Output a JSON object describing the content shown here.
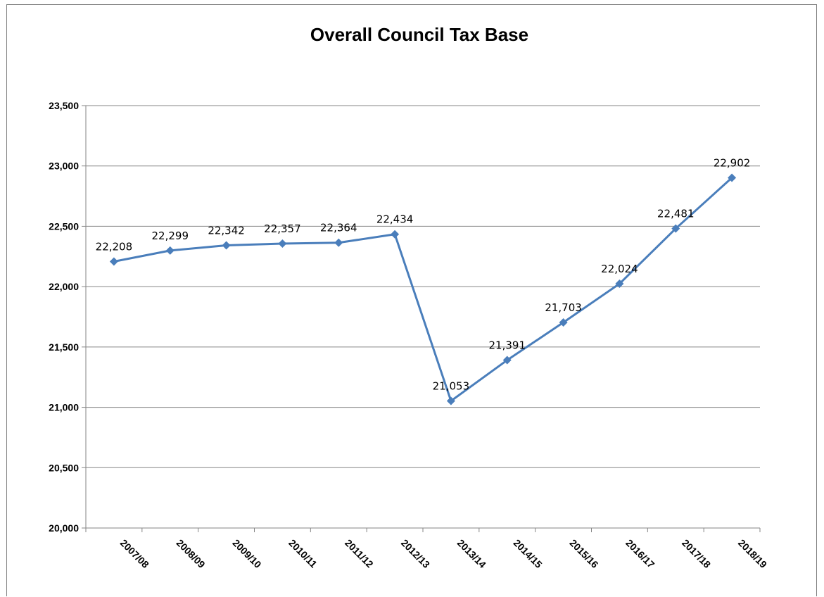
{
  "chart_data": {
    "type": "line",
    "title": "Overall Council Tax Base",
    "xlabel": "",
    "ylabel": "",
    "categories": [
      "2007/08",
      "2008/09",
      "2009/10",
      "2010/11",
      "2011/12",
      "2012/13",
      "2013/14",
      "2014/15",
      "2015/16",
      "2016/17",
      "2017/18",
      "2018/19"
    ],
    "series": [
      {
        "values": [
          22208,
          22299,
          22342,
          22357,
          22364,
          22434,
          21053,
          21391,
          21703,
          22024,
          22481,
          22902
        ],
        "color": "#4a7ebb",
        "marker": "diamond"
      }
    ],
    "data_labels": [
      "22,208",
      "22,299",
      "22,342",
      "22,357",
      "22,364",
      "22,434",
      "21,053",
      "21,391",
      "21,703",
      "22,024",
      "22,481",
      "22,902"
    ],
    "ylim": [
      20000,
      23500
    ],
    "yticks": [
      20000,
      20500,
      21000,
      21500,
      22000,
      22500,
      23000,
      23500
    ],
    "ytick_labels": [
      "20,000",
      "20,500",
      "21,000",
      "21,500",
      "22,000",
      "22,500",
      "23,000",
      "23,500"
    ],
    "grid": true,
    "legend": "none"
  }
}
